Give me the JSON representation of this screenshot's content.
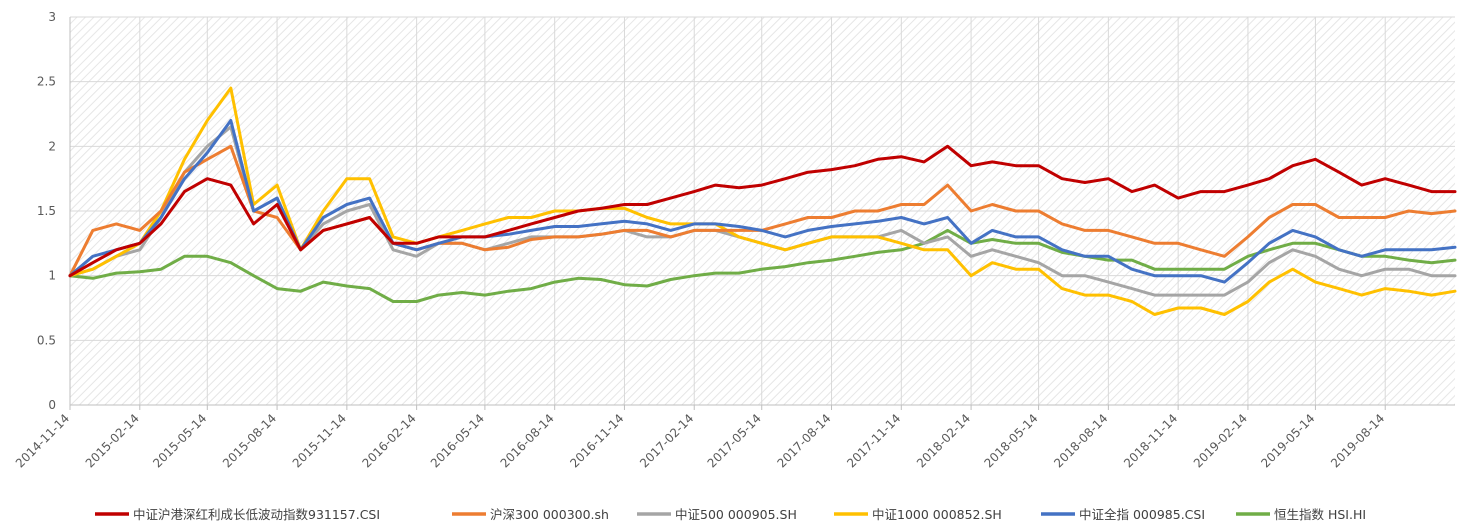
{
  "chart_data": {
    "type": "line",
    "title": "",
    "xlabel": "",
    "ylabel": "",
    "ylim": [
      0,
      3
    ],
    "yticks": [
      0,
      0.5,
      1,
      1.5,
      2,
      2.5,
      3
    ],
    "ytick_labels": [
      "0",
      "0.5",
      "1",
      "1.5",
      "2",
      "2.5",
      "3"
    ],
    "x_start": "2014-11-14",
    "x_end": "2019-11-14",
    "xticks": [
      "2014-11-14",
      "2015-02-14",
      "2015-05-14",
      "2015-08-14",
      "2015-11-14",
      "2016-02-14",
      "2016-05-14",
      "2016-08-14",
      "2016-11-14",
      "2017-02-14",
      "2017-05-14",
      "2017-08-14",
      "2017-11-14",
      "2018-02-14",
      "2018-05-14",
      "2018-08-14",
      "2018-11-14",
      "2019-02-14",
      "2019-05-14",
      "2019-08-14"
    ],
    "grid": true,
    "legend_position": "bottom",
    "x": [
      "2014-11-14",
      "2014-12-14",
      "2015-01-14",
      "2015-02-14",
      "2015-03-14",
      "2015-04-14",
      "2015-05-14",
      "2015-06-14",
      "2015-07-14",
      "2015-08-14",
      "2015-09-14",
      "2015-10-14",
      "2015-11-14",
      "2015-12-14",
      "2016-01-14",
      "2016-02-14",
      "2016-03-14",
      "2016-04-14",
      "2016-05-14",
      "2016-06-14",
      "2016-07-14",
      "2016-08-14",
      "2016-09-14",
      "2016-10-14",
      "2016-11-14",
      "2016-12-14",
      "2017-01-14",
      "2017-02-14",
      "2017-03-14",
      "2017-04-14",
      "2017-05-14",
      "2017-06-14",
      "2017-07-14",
      "2017-08-14",
      "2017-09-14",
      "2017-10-14",
      "2017-11-14",
      "2017-12-14",
      "2018-01-14",
      "2018-02-14",
      "2018-03-14",
      "2018-04-14",
      "2018-05-14",
      "2018-06-14",
      "2018-07-14",
      "2018-08-14",
      "2018-09-14",
      "2018-10-14",
      "2018-11-14",
      "2018-12-14",
      "2019-01-14",
      "2019-02-14",
      "2019-03-14",
      "2019-04-14",
      "2019-05-14",
      "2019-06-14",
      "2019-07-14",
      "2019-08-14",
      "2019-09-14",
      "2019-10-14",
      "2019-11-14"
    ],
    "series": [
      {
        "name": "中证沪港深红利成长低波动指数931157.CSI",
        "color": "#C00000",
        "values": [
          1.0,
          1.1,
          1.2,
          1.25,
          1.4,
          1.65,
          1.75,
          1.7,
          1.4,
          1.55,
          1.2,
          1.35,
          1.4,
          1.45,
          1.25,
          1.25,
          1.3,
          1.3,
          1.3,
          1.35,
          1.4,
          1.45,
          1.5,
          1.52,
          1.55,
          1.55,
          1.6,
          1.65,
          1.7,
          1.68,
          1.7,
          1.75,
          1.8,
          1.82,
          1.85,
          1.9,
          1.92,
          1.88,
          2.0,
          1.85,
          1.88,
          1.85,
          1.85,
          1.75,
          1.72,
          1.75,
          1.65,
          1.7,
          1.6,
          1.65,
          1.65,
          1.7,
          1.75,
          1.85,
          1.9,
          1.8,
          1.7,
          1.75,
          1.7,
          1.65,
          1.65
        ]
      },
      {
        "name": "沪深300 000300.sh",
        "color": "#ED7D31",
        "values": [
          1.0,
          1.35,
          1.4,
          1.35,
          1.5,
          1.8,
          1.9,
          2.0,
          1.5,
          1.45,
          1.2,
          1.35,
          1.4,
          1.45,
          1.25,
          1.2,
          1.25,
          1.25,
          1.2,
          1.22,
          1.28,
          1.3,
          1.3,
          1.32,
          1.35,
          1.35,
          1.3,
          1.35,
          1.35,
          1.35,
          1.35,
          1.4,
          1.45,
          1.45,
          1.5,
          1.5,
          1.55,
          1.55,
          1.7,
          1.5,
          1.55,
          1.5,
          1.5,
          1.4,
          1.35,
          1.35,
          1.3,
          1.25,
          1.25,
          1.2,
          1.15,
          1.3,
          1.45,
          1.55,
          1.55,
          1.45,
          1.45,
          1.45,
          1.5,
          1.48,
          1.5
        ]
      },
      {
        "name": "中证500 000905.SH",
        "color": "#A5A5A5",
        "values": [
          1.0,
          1.05,
          1.15,
          1.2,
          1.45,
          1.8,
          2.0,
          2.15,
          1.5,
          1.6,
          1.2,
          1.4,
          1.5,
          1.55,
          1.2,
          1.15,
          1.25,
          1.25,
          1.2,
          1.25,
          1.3,
          1.3,
          1.3,
          1.32,
          1.35,
          1.3,
          1.3,
          1.35,
          1.35,
          1.3,
          1.25,
          1.2,
          1.25,
          1.3,
          1.3,
          1.3,
          1.35,
          1.25,
          1.3,
          1.15,
          1.2,
          1.15,
          1.1,
          1.0,
          1.0,
          0.95,
          0.9,
          0.85,
          0.85,
          0.85,
          0.85,
          0.95,
          1.1,
          1.2,
          1.15,
          1.05,
          1.0,
          1.05,
          1.05,
          1.0,
          1.0
        ]
      },
      {
        "name": "中证1000 000852.SH",
        "color": "#FFC000",
        "values": [
          1.0,
          1.05,
          1.15,
          1.25,
          1.5,
          1.9,
          2.2,
          2.45,
          1.55,
          1.7,
          1.2,
          1.5,
          1.75,
          1.75,
          1.3,
          1.25,
          1.3,
          1.35,
          1.4,
          1.45,
          1.45,
          1.5,
          1.5,
          1.52,
          1.52,
          1.45,
          1.4,
          1.4,
          1.4,
          1.3,
          1.25,
          1.2,
          1.25,
          1.3,
          1.3,
          1.3,
          1.25,
          1.2,
          1.2,
          1.0,
          1.1,
          1.05,
          1.05,
          0.9,
          0.85,
          0.85,
          0.8,
          0.7,
          0.75,
          0.75,
          0.7,
          0.8,
          0.95,
          1.05,
          0.95,
          0.9,
          0.85,
          0.9,
          0.88,
          0.85,
          0.88
        ]
      },
      {
        "name": "中证全指 000985.CSI",
        "color": "#4472C4",
        "values": [
          1.0,
          1.15,
          1.2,
          1.25,
          1.45,
          1.75,
          1.95,
          2.2,
          1.5,
          1.6,
          1.2,
          1.45,
          1.55,
          1.6,
          1.25,
          1.2,
          1.25,
          1.3,
          1.3,
          1.32,
          1.35,
          1.38,
          1.38,
          1.4,
          1.42,
          1.4,
          1.35,
          1.4,
          1.4,
          1.38,
          1.35,
          1.3,
          1.35,
          1.38,
          1.4,
          1.42,
          1.45,
          1.4,
          1.45,
          1.25,
          1.35,
          1.3,
          1.3,
          1.2,
          1.15,
          1.15,
          1.05,
          1.0,
          1.0,
          1.0,
          0.95,
          1.1,
          1.25,
          1.35,
          1.3,
          1.2,
          1.15,
          1.2,
          1.2,
          1.2,
          1.22
        ]
      },
      {
        "name": "恒生指数 HSI.HI",
        "color": "#70AD47",
        "values": [
          1.0,
          0.98,
          1.02,
          1.03,
          1.05,
          1.15,
          1.15,
          1.1,
          1.0,
          0.9,
          0.88,
          0.95,
          0.92,
          0.9,
          0.8,
          0.8,
          0.85,
          0.87,
          0.85,
          0.88,
          0.9,
          0.95,
          0.98,
          0.97,
          0.93,
          0.92,
          0.97,
          1.0,
          1.02,
          1.02,
          1.05,
          1.07,
          1.1,
          1.12,
          1.15,
          1.18,
          1.2,
          1.25,
          1.35,
          1.25,
          1.28,
          1.25,
          1.25,
          1.18,
          1.15,
          1.12,
          1.12,
          1.05,
          1.05,
          1.05,
          1.05,
          1.15,
          1.2,
          1.25,
          1.25,
          1.2,
          1.15,
          1.15,
          1.12,
          1.1,
          1.12
        ]
      }
    ]
  }
}
